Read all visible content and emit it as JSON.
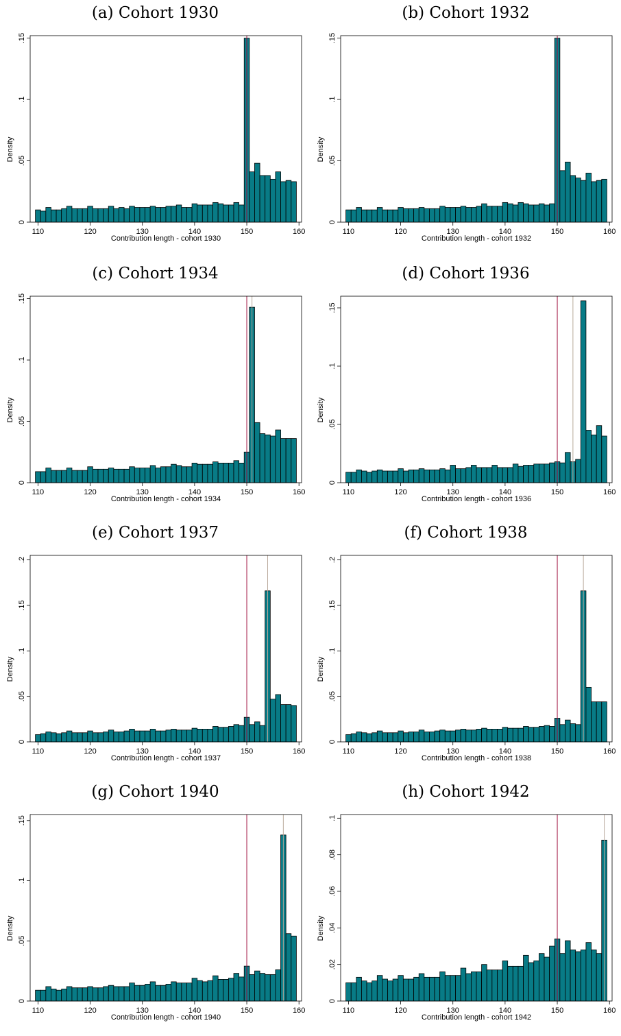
{
  "figure": {
    "ylabel": "Density",
    "bar_fill": "#087b86",
    "bar_stroke": "#000000",
    "statutory_line_color": "#a0103e",
    "cohort_line_color": "#b8a89a"
  },
  "chart_data": [
    {
      "type": "bar",
      "title": "(a) Cohort 1930",
      "xlabel": "Contribution length - cohort 1930",
      "ylabel": "Density",
      "xlim": [
        108.5,
        160.5
      ],
      "ylim": [
        0,
        0.152
      ],
      "xticks": [
        110,
        120,
        130,
        140,
        150,
        160
      ],
      "xtick_labels": [
        "110",
        "120",
        "130",
        "140",
        "150",
        "160"
      ],
      "yticks": [
        0,
        0.05,
        0.1,
        0.15
      ],
      "ytick_labels": [
        "0",
        ".05",
        ".1",
        ".15"
      ],
      "vlines": [
        150
      ],
      "categories": [
        110,
        111,
        112,
        113,
        114,
        115,
        116,
        117,
        118,
        119,
        120,
        121,
        122,
        123,
        124,
        125,
        126,
        127,
        128,
        129,
        130,
        131,
        132,
        133,
        134,
        135,
        136,
        137,
        138,
        139,
        140,
        141,
        142,
        143,
        144,
        145,
        146,
        147,
        148,
        149,
        150,
        151,
        152,
        153,
        154,
        155,
        156,
        157,
        158,
        159
      ],
      "values": [
        0.01,
        0.009,
        0.012,
        0.01,
        0.01,
        0.011,
        0.013,
        0.011,
        0.011,
        0.011,
        0.013,
        0.011,
        0.011,
        0.011,
        0.013,
        0.011,
        0.012,
        0.011,
        0.013,
        0.012,
        0.012,
        0.012,
        0.013,
        0.012,
        0.012,
        0.013,
        0.013,
        0.014,
        0.012,
        0.012,
        0.015,
        0.014,
        0.014,
        0.014,
        0.016,
        0.015,
        0.014,
        0.014,
        0.016,
        0.014,
        0.15,
        0.041,
        0.048,
        0.038,
        0.038,
        0.035,
        0.041,
        0.033,
        0.034,
        0.033
      ]
    },
    {
      "type": "bar",
      "title": "(b) Cohort 1932",
      "xlabel": "Contribution length - cohort 1932",
      "ylabel": "Density",
      "xlim": [
        108.5,
        160.5
      ],
      "ylim": [
        0,
        0.152
      ],
      "xticks": [
        110,
        120,
        130,
        140,
        150,
        160
      ],
      "xtick_labels": [
        "110",
        "120",
        "130",
        "140",
        "150",
        "160"
      ],
      "yticks": [
        0,
        0.05,
        0.1,
        0.15
      ],
      "ytick_labels": [
        "0",
        ".05",
        ".1",
        ".15"
      ],
      "vlines": [
        150
      ],
      "categories": [
        110,
        111,
        112,
        113,
        114,
        115,
        116,
        117,
        118,
        119,
        120,
        121,
        122,
        123,
        124,
        125,
        126,
        127,
        128,
        129,
        130,
        131,
        132,
        133,
        134,
        135,
        136,
        137,
        138,
        139,
        140,
        141,
        142,
        143,
        144,
        145,
        146,
        147,
        148,
        149,
        150,
        151,
        152,
        153,
        154,
        155,
        156,
        157,
        158,
        159
      ],
      "values": [
        0.01,
        0.01,
        0.012,
        0.01,
        0.01,
        0.01,
        0.012,
        0.01,
        0.01,
        0.01,
        0.012,
        0.011,
        0.011,
        0.011,
        0.012,
        0.011,
        0.011,
        0.011,
        0.013,
        0.012,
        0.012,
        0.012,
        0.013,
        0.012,
        0.012,
        0.013,
        0.015,
        0.013,
        0.013,
        0.013,
        0.016,
        0.015,
        0.014,
        0.016,
        0.015,
        0.014,
        0.014,
        0.015,
        0.014,
        0.015,
        0.15,
        0.042,
        0.049,
        0.038,
        0.036,
        0.034,
        0.04,
        0.033,
        0.034,
        0.035
      ]
    },
    {
      "type": "bar",
      "title": "(c) Cohort 1934",
      "xlabel": "Contribution length - cohort 1934",
      "ylabel": "Density",
      "xlim": [
        108.5,
        160.5
      ],
      "ylim": [
        0,
        0.152
      ],
      "xticks": [
        110,
        120,
        130,
        140,
        150,
        160
      ],
      "xtick_labels": [
        "110",
        "120",
        "130",
        "140",
        "150",
        "160"
      ],
      "yticks": [
        0,
        0.05,
        0.1,
        0.15
      ],
      "ytick_labels": [
        "0",
        ".05",
        ".1",
        ".15"
      ],
      "vlines": [
        150,
        151
      ],
      "categories": [
        110,
        111,
        112,
        113,
        114,
        115,
        116,
        117,
        118,
        119,
        120,
        121,
        122,
        123,
        124,
        125,
        126,
        127,
        128,
        129,
        130,
        131,
        132,
        133,
        134,
        135,
        136,
        137,
        138,
        139,
        140,
        141,
        142,
        143,
        144,
        145,
        146,
        147,
        148,
        149,
        150,
        151,
        152,
        153,
        154,
        155,
        156,
        157,
        158,
        159
      ],
      "values": [
        0.009,
        0.009,
        0.012,
        0.01,
        0.01,
        0.01,
        0.012,
        0.01,
        0.01,
        0.01,
        0.013,
        0.011,
        0.011,
        0.011,
        0.012,
        0.011,
        0.011,
        0.011,
        0.013,
        0.012,
        0.012,
        0.012,
        0.014,
        0.012,
        0.013,
        0.013,
        0.015,
        0.014,
        0.013,
        0.013,
        0.016,
        0.015,
        0.015,
        0.015,
        0.017,
        0.016,
        0.016,
        0.016,
        0.018,
        0.016,
        0.025,
        0.143,
        0.049,
        0.04,
        0.039,
        0.038,
        0.043,
        0.036,
        0.036,
        0.036
      ]
    },
    {
      "type": "bar",
      "title": "(d) Cohort 1936",
      "xlabel": "Contribution length - cohort 1936",
      "ylabel": "Density",
      "xlim": [
        108.5,
        160.5
      ],
      "ylim": [
        0,
        0.16
      ],
      "xticks": [
        110,
        120,
        130,
        140,
        150,
        160
      ],
      "xtick_labels": [
        "110",
        "120",
        "130",
        "140",
        "150",
        "160"
      ],
      "yticks": [
        0,
        0.05,
        0.1,
        0.15
      ],
      "ytick_labels": [
        "0",
        ".05",
        ".1",
        ".15"
      ],
      "vlines": [
        150,
        153
      ],
      "categories": [
        110,
        111,
        112,
        113,
        114,
        115,
        116,
        117,
        118,
        119,
        120,
        121,
        122,
        123,
        124,
        125,
        126,
        127,
        128,
        129,
        130,
        131,
        132,
        133,
        134,
        135,
        136,
        137,
        138,
        139,
        140,
        141,
        142,
        143,
        144,
        145,
        146,
        147,
        148,
        149,
        150,
        151,
        152,
        153,
        154,
        155,
        156,
        157,
        158,
        159
      ],
      "values": [
        0.009,
        0.009,
        0.011,
        0.01,
        0.009,
        0.01,
        0.011,
        0.01,
        0.01,
        0.01,
        0.012,
        0.01,
        0.011,
        0.011,
        0.012,
        0.011,
        0.011,
        0.011,
        0.012,
        0.011,
        0.015,
        0.012,
        0.012,
        0.013,
        0.015,
        0.013,
        0.013,
        0.013,
        0.015,
        0.013,
        0.013,
        0.013,
        0.016,
        0.014,
        0.015,
        0.015,
        0.016,
        0.016,
        0.016,
        0.017,
        0.018,
        0.017,
        0.026,
        0.018,
        0.02,
        0.156,
        0.045,
        0.041,
        0.049,
        0.04
      ]
    },
    {
      "type": "bar",
      "title": "(e) Cohort 1937",
      "xlabel": "Contribution length - cohort 1937",
      "ylabel": "Density",
      "xlim": [
        108.5,
        160.5
      ],
      "ylim": [
        0,
        0.205
      ],
      "xticks": [
        110,
        120,
        130,
        140,
        150,
        160
      ],
      "xtick_labels": [
        "110",
        "120",
        "130",
        "140",
        "150",
        "160"
      ],
      "yticks": [
        0,
        0.05,
        0.1,
        0.15,
        0.2
      ],
      "ytick_labels": [
        "0",
        ".05",
        ".1",
        ".15",
        ".2"
      ],
      "vlines": [
        150,
        154
      ],
      "categories": [
        110,
        111,
        112,
        113,
        114,
        115,
        116,
        117,
        118,
        119,
        120,
        121,
        122,
        123,
        124,
        125,
        126,
        127,
        128,
        129,
        130,
        131,
        132,
        133,
        134,
        135,
        136,
        137,
        138,
        139,
        140,
        141,
        142,
        143,
        144,
        145,
        146,
        147,
        148,
        149,
        150,
        151,
        152,
        153,
        154,
        155,
        156,
        157,
        158,
        159
      ],
      "values": [
        0.008,
        0.009,
        0.011,
        0.01,
        0.009,
        0.01,
        0.012,
        0.01,
        0.01,
        0.01,
        0.012,
        0.01,
        0.01,
        0.011,
        0.013,
        0.011,
        0.011,
        0.012,
        0.014,
        0.012,
        0.012,
        0.012,
        0.014,
        0.012,
        0.012,
        0.013,
        0.014,
        0.013,
        0.013,
        0.013,
        0.015,
        0.014,
        0.014,
        0.014,
        0.017,
        0.016,
        0.016,
        0.017,
        0.019,
        0.018,
        0.027,
        0.019,
        0.022,
        0.018,
        0.166,
        0.047,
        0.052,
        0.041,
        0.041,
        0.04
      ]
    },
    {
      "type": "bar",
      "title": "(f) Cohort 1938",
      "xlabel": "Contribution length - cohort 1938",
      "ylabel": "Density",
      "xlim": [
        108.5,
        160.5
      ],
      "ylim": [
        0,
        0.205
      ],
      "xticks": [
        110,
        120,
        130,
        140,
        150,
        160
      ],
      "xtick_labels": [
        "110",
        "120",
        "130",
        "140",
        "150",
        "160"
      ],
      "yticks": [
        0,
        0.05,
        0.1,
        0.15,
        0.2
      ],
      "ytick_labels": [
        "0",
        ".05",
        ".1",
        ".15",
        ".2"
      ],
      "vlines": [
        150,
        155
      ],
      "categories": [
        110,
        111,
        112,
        113,
        114,
        115,
        116,
        117,
        118,
        119,
        120,
        121,
        122,
        123,
        124,
        125,
        126,
        127,
        128,
        129,
        130,
        131,
        132,
        133,
        134,
        135,
        136,
        137,
        138,
        139,
        140,
        141,
        142,
        143,
        144,
        145,
        146,
        147,
        148,
        149,
        150,
        151,
        152,
        153,
        154,
        155,
        156,
        157,
        158,
        159
      ],
      "values": [
        0.008,
        0.009,
        0.011,
        0.01,
        0.009,
        0.01,
        0.012,
        0.01,
        0.01,
        0.01,
        0.012,
        0.01,
        0.011,
        0.011,
        0.013,
        0.011,
        0.011,
        0.012,
        0.013,
        0.012,
        0.012,
        0.013,
        0.014,
        0.013,
        0.013,
        0.014,
        0.015,
        0.014,
        0.014,
        0.014,
        0.016,
        0.015,
        0.015,
        0.015,
        0.017,
        0.016,
        0.016,
        0.017,
        0.018,
        0.017,
        0.026,
        0.019,
        0.024,
        0.02,
        0.019,
        0.166,
        0.06,
        0.044,
        0.044,
        0.044
      ]
    },
    {
      "type": "bar",
      "title": "(g) Cohort 1940",
      "xlabel": "Contribution length - cohort 1940",
      "ylabel": "Density",
      "xlim": [
        108.5,
        160.5
      ],
      "ylim": [
        0,
        0.155
      ],
      "xticks": [
        110,
        120,
        130,
        140,
        150,
        160
      ],
      "xtick_labels": [
        "110",
        "120",
        "130",
        "140",
        "150",
        "160"
      ],
      "yticks": [
        0,
        0.05,
        0.1,
        0.15
      ],
      "ytick_labels": [
        "0",
        ".05",
        ".1",
        ".15"
      ],
      "vlines": [
        150,
        157
      ],
      "categories": [
        110,
        111,
        112,
        113,
        114,
        115,
        116,
        117,
        118,
        119,
        120,
        121,
        122,
        123,
        124,
        125,
        126,
        127,
        128,
        129,
        130,
        131,
        132,
        133,
        134,
        135,
        136,
        137,
        138,
        139,
        140,
        141,
        142,
        143,
        144,
        145,
        146,
        147,
        148,
        149,
        150,
        151,
        152,
        153,
        154,
        155,
        156,
        157,
        158,
        159
      ],
      "values": [
        0.009,
        0.009,
        0.012,
        0.01,
        0.009,
        0.01,
        0.012,
        0.011,
        0.011,
        0.011,
        0.012,
        0.011,
        0.011,
        0.012,
        0.013,
        0.012,
        0.012,
        0.012,
        0.015,
        0.013,
        0.013,
        0.014,
        0.016,
        0.013,
        0.013,
        0.014,
        0.016,
        0.015,
        0.015,
        0.015,
        0.019,
        0.017,
        0.016,
        0.017,
        0.021,
        0.018,
        0.018,
        0.019,
        0.023,
        0.02,
        0.029,
        0.022,
        0.025,
        0.023,
        0.022,
        0.022,
        0.026,
        0.138,
        0.056,
        0.054
      ]
    },
    {
      "type": "bar",
      "title": "(h) Cohort 1942",
      "xlabel": "Contribution length - cohort 1942",
      "ylabel": "Density",
      "xlim": [
        108.5,
        160.5
      ],
      "ylim": [
        0,
        0.102
      ],
      "xticks": [
        110,
        120,
        130,
        140,
        150,
        160
      ],
      "xtick_labels": [
        "110",
        "120",
        "130",
        "140",
        "150",
        "160"
      ],
      "yticks": [
        0,
        0.02,
        0.04,
        0.06,
        0.08,
        0.1
      ],
      "ytick_labels": [
        "0",
        ".02",
        ".04",
        ".06",
        ".08",
        ".1"
      ],
      "vlines": [
        150,
        159
      ],
      "categories": [
        110,
        111,
        112,
        113,
        114,
        115,
        116,
        117,
        118,
        119,
        120,
        121,
        122,
        123,
        124,
        125,
        126,
        127,
        128,
        129,
        130,
        131,
        132,
        133,
        134,
        135,
        136,
        137,
        138,
        139,
        140,
        141,
        142,
        143,
        144,
        145,
        146,
        147,
        148,
        149,
        150,
        151,
        152,
        153,
        154,
        155,
        156,
        157,
        158,
        159
      ],
      "values": [
        0.01,
        0.01,
        0.013,
        0.011,
        0.01,
        0.011,
        0.014,
        0.012,
        0.011,
        0.012,
        0.014,
        0.012,
        0.012,
        0.013,
        0.015,
        0.013,
        0.013,
        0.013,
        0.016,
        0.014,
        0.014,
        0.014,
        0.018,
        0.015,
        0.016,
        0.016,
        0.02,
        0.017,
        0.017,
        0.017,
        0.022,
        0.019,
        0.019,
        0.019,
        0.025,
        0.021,
        0.022,
        0.026,
        0.024,
        0.03,
        0.034,
        0.026,
        0.033,
        0.028,
        0.027,
        0.028,
        0.032,
        0.028,
        0.026,
        0.088
      ]
    }
  ]
}
